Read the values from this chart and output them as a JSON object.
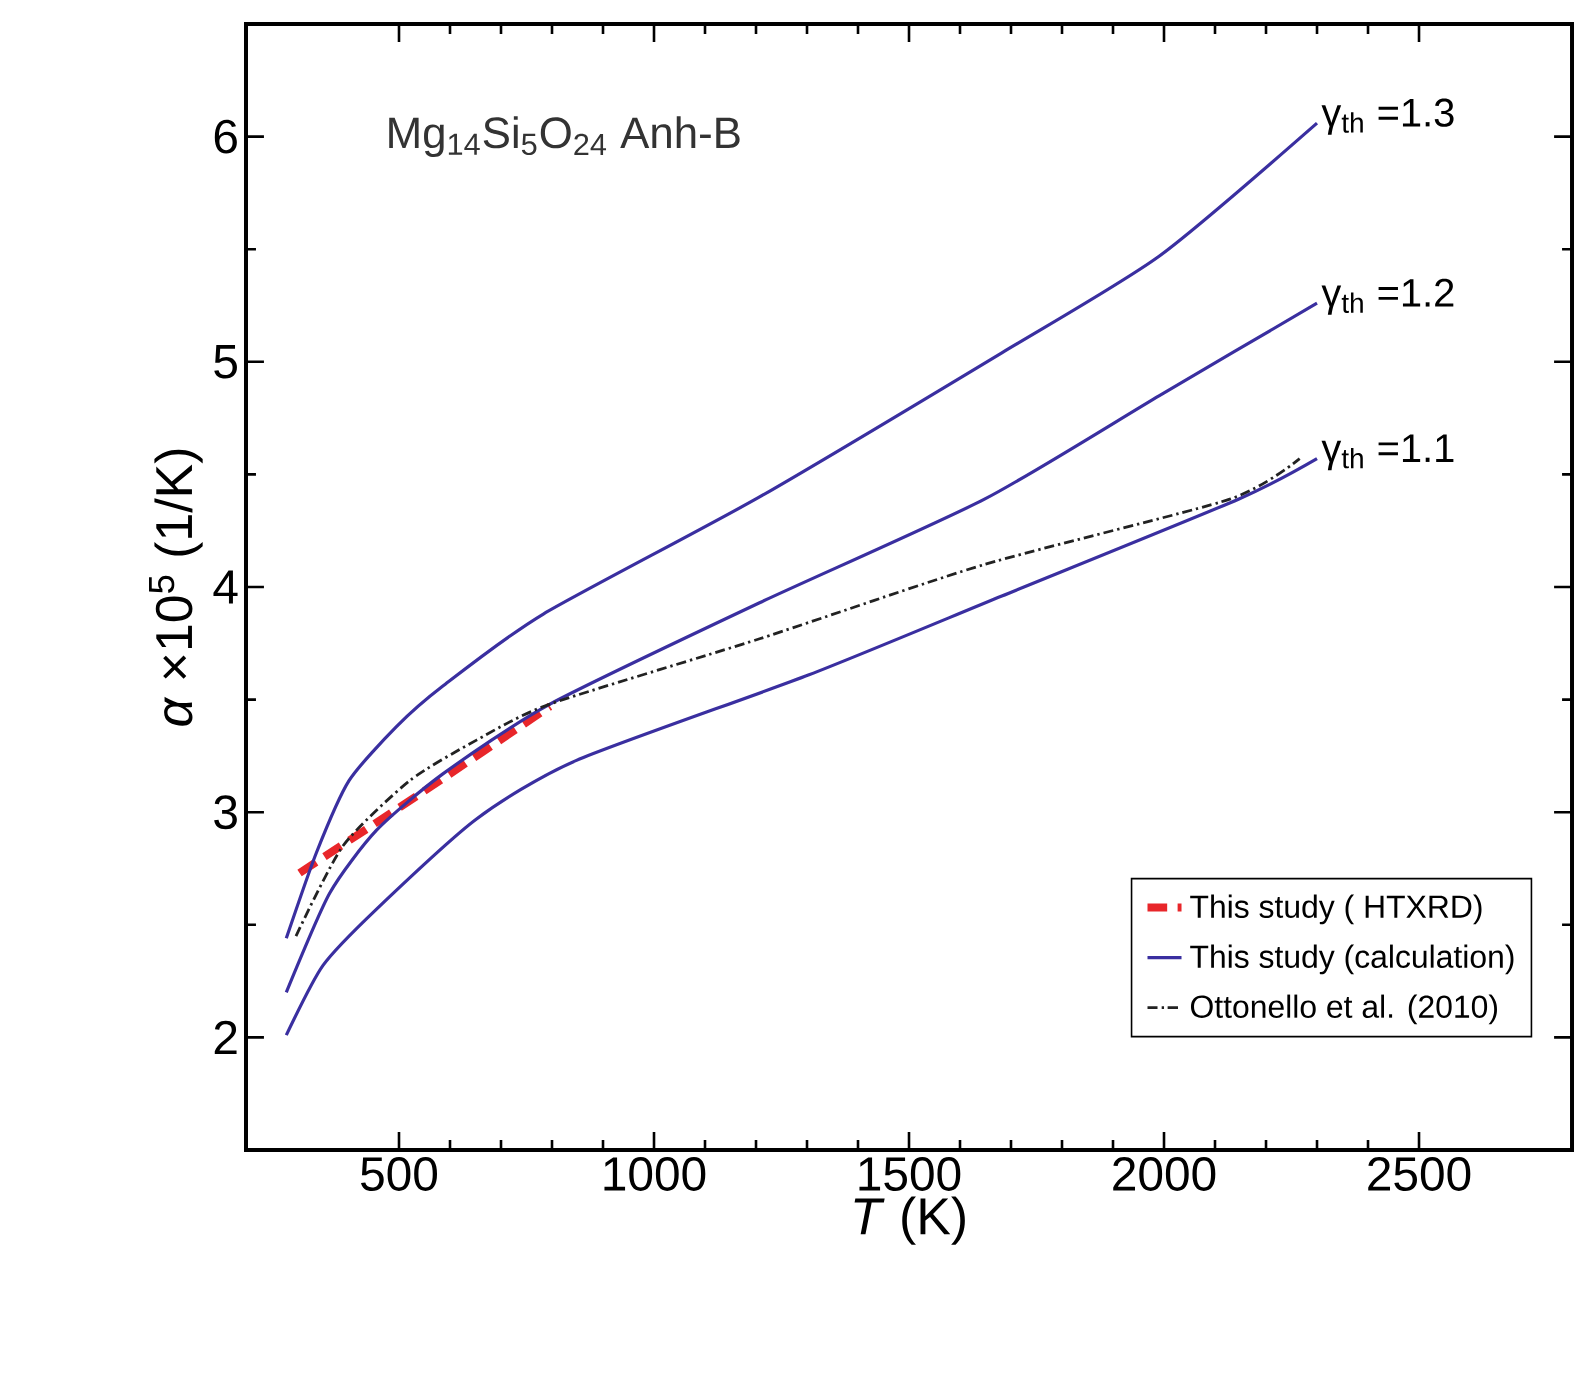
{
  "chart_data": {
    "type": "line",
    "title": "Mg$_{14}$Si$_{5}$O$_{24}$ Anh-B",
    "xlabel": "*T* (K)",
    "ylabel": "*α* ×10$^{5}$ (1/K)",
    "xlim": [
      200,
      2800
    ],
    "ylim": [
      1.5,
      6.5
    ],
    "xticks": [
      500,
      1000,
      1500,
      2000,
      2500
    ],
    "yticks": [
      2,
      3,
      4,
      5,
      6
    ],
    "grid": false,
    "legend": "bottom right",
    "marker": "none",
    "series": [
      {
        "name": "This study ( HTXRD)",
        "color": "#e8262a",
        "line_style": "dashed",
        "x": [
          305,
          547,
          796
        ],
        "values": [
          2.73,
          3.09,
          3.47
        ]
      },
      {
        "name": "This study (calculation)",
        "color": "#3a2fa0",
        "line_style": "solid",
        "x": [
          279,
          338,
          402,
          495,
          586,
          783,
          1207,
          1682,
          1991,
          2300
        ],
        "values": [
          2.44,
          2.82,
          3.14,
          3.38,
          3.56,
          3.88,
          4.4,
          5.04,
          5.47,
          6.06
        ]
      },
      {
        "color": "#3a2fa0",
        "line_style": "solid",
        "x": [
          279,
          364,
          456,
          586,
          796,
          1207,
          1648,
          1991,
          2300
        ],
        "values": [
          2.2,
          2.64,
          2.92,
          3.17,
          3.48,
          3.93,
          4.39,
          4.85,
          5.26
        ]
      },
      {
        "color": "#3a2fa0",
        "line_style": "solid",
        "x": [
          279,
          351,
          456,
          652,
          848,
          1304,
          1682,
          2146,
          2300
        ],
        "values": [
          2.01,
          2.32,
          2.57,
          2.97,
          3.23,
          3.61,
          3.96,
          4.39,
          4.57
        ]
      },
      {
        "name": "Ottonello et al. (2010)",
        "color": "#222222",
        "line_style": "dashdot",
        "x": [
          298,
          390,
          521,
          652,
          796,
          1207,
          1648,
          2129,
          2266
        ],
        "values": [
          2.45,
          2.85,
          3.14,
          3.32,
          3.48,
          3.77,
          4.1,
          4.39,
          4.57
        ]
      }
    ],
    "annotations": [
      "γ$_{th}$ =1.3",
      "γ$_{th}$ =1.2",
      "γ$_{th}$ =1.1"
    ]
  }
}
